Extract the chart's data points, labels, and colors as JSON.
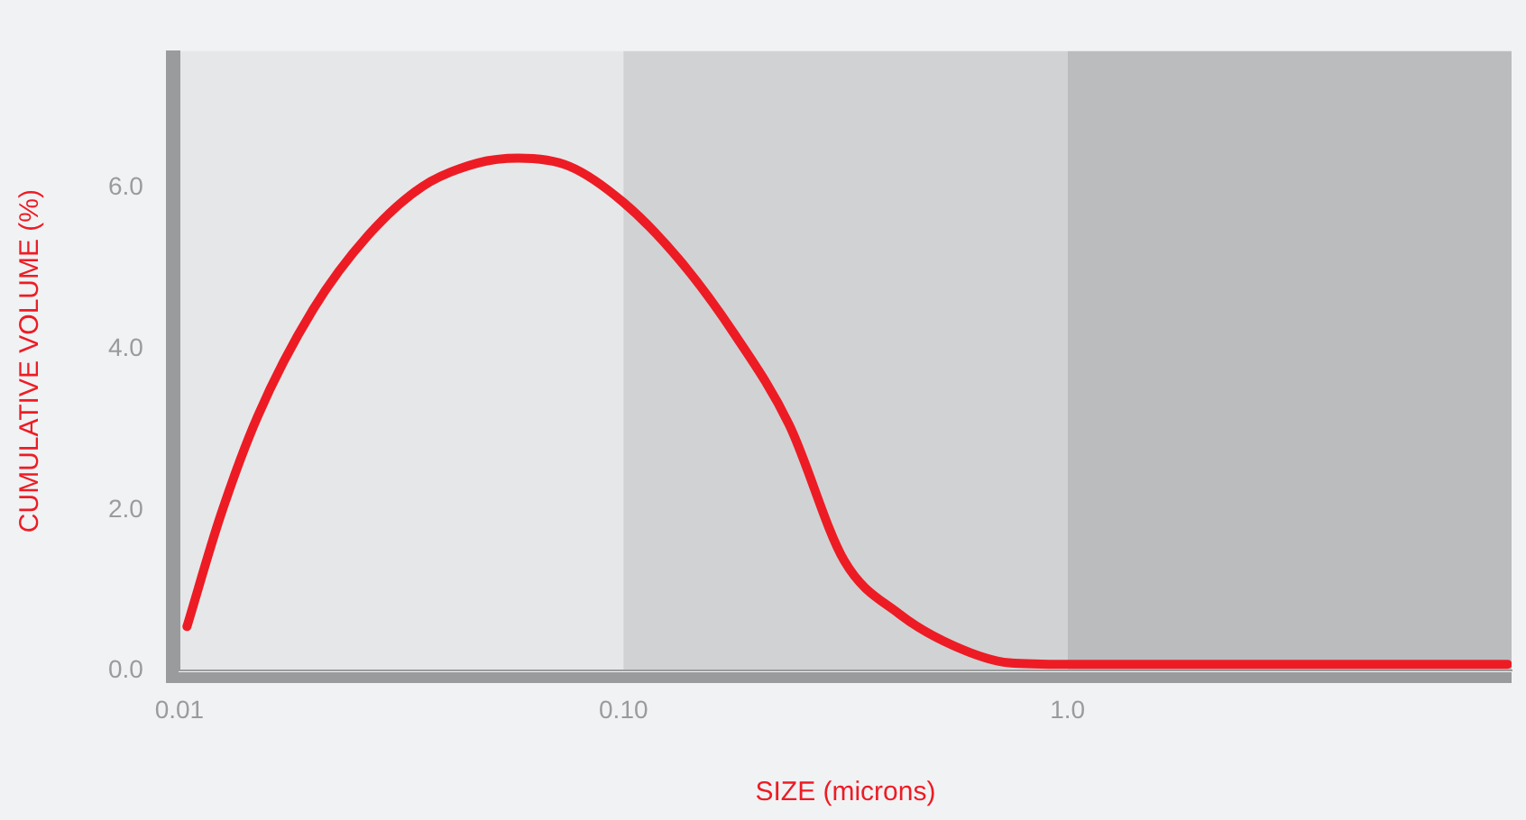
{
  "chart_data": {
    "type": "line",
    "xlabel": "SIZE (microns)",
    "ylabel": "CUMULATIVE VOLUME (%)",
    "log": "x",
    "xlim": [
      0.01,
      10
    ],
    "ylim": [
      0,
      7.7
    ],
    "xticks": [
      {
        "value": 0.01,
        "label": "0.01"
      },
      {
        "value": 0.1,
        "label": "0.10"
      },
      {
        "value": 1,
        "label": "1.0"
      }
    ],
    "yticks": [
      {
        "value": 0,
        "label": "0.0"
      },
      {
        "value": 2,
        "label": "2.0"
      },
      {
        "value": 4,
        "label": "4.0"
      },
      {
        "value": 6,
        "label": "6.0"
      }
    ],
    "grid": false,
    "legend": false,
    "marker": "none",
    "line_style": "solid",
    "bands": [
      {
        "axis": "x",
        "from": 0.01,
        "to": 0.1,
        "color": "#e6e7e9"
      },
      {
        "axis": "x",
        "from": 0.1,
        "to": 1,
        "color": "#d1d2d4"
      },
      {
        "axis": "x",
        "from": 1,
        "to": 10,
        "color": "#bbbcbe"
      }
    ],
    "series": [
      {
        "color": "#ed1c24",
        "x": [
          0.0104,
          0.0124,
          0.015,
          0.02,
          0.0266,
          0.0353,
          0.047,
          0.058,
          0.0755,
          0.1,
          0.134,
          0.178,
          0.236,
          0.314,
          0.417,
          0.555,
          0.738,
          1,
          9.8
        ],
        "values": [
          0.55,
          1.94,
          3.16,
          4.49,
          5.41,
          6.02,
          6.31,
          6.37,
          6.27,
          5.82,
          5.1,
          4.18,
          3.06,
          1.37,
          0.71,
          0.31,
          0.1,
          0.08,
          0.08
        ]
      }
    ]
  }
}
